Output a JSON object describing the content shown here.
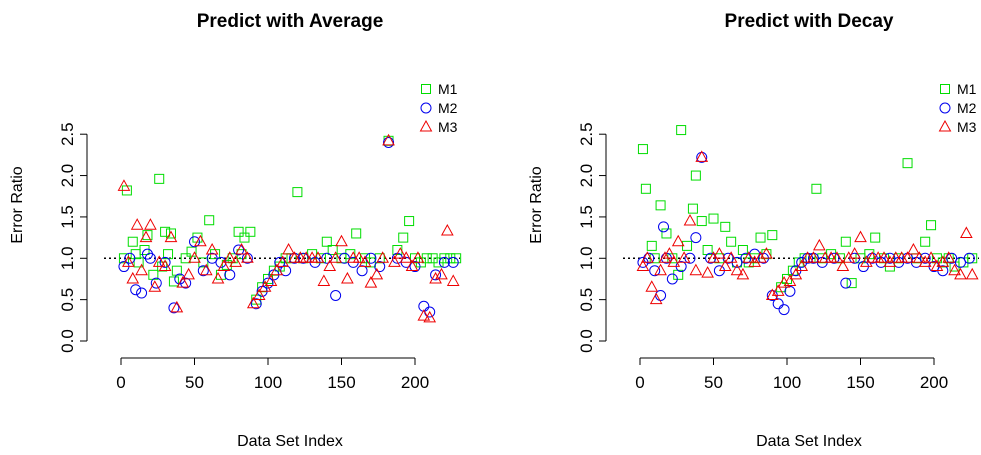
{
  "chart_data": [
    {
      "type": "scatter",
      "title": "Predict with Average",
      "xlabel": "Data Set Index",
      "ylabel": "Error Ratio",
      "xlim": [
        0,
        230
      ],
      "ylim": [
        0,
        2.5
      ],
      "x_ticks": [
        "0",
        "50",
        "100",
        "150",
        "200"
      ],
      "y_ticks": [
        "0.0",
        "0.5",
        "1.0",
        "1.5",
        "2.0",
        "2.5"
      ],
      "legend_position": "top-right",
      "series": [
        {
          "name": "M1",
          "color": "#00dd00",
          "marker": "square",
          "x": [
            2,
            4,
            8,
            10,
            12,
            16,
            18,
            22,
            26,
            28,
            30,
            32,
            34,
            36,
            38,
            44,
            48,
            52,
            56,
            60,
            64,
            68,
            72,
            76,
            80,
            82,
            84,
            88,
            92,
            96,
            100,
            104,
            108,
            112,
            116,
            120,
            124,
            130,
            136,
            140,
            144,
            150,
            156,
            160,
            166,
            170,
            176,
            182,
            188,
            192,
            196,
            200,
            204,
            208,
            212,
            216,
            220,
            224,
            228
          ],
          "y": [
            1.0,
            1.82,
            1.2,
            1.05,
            0.95,
            1.1,
            1.28,
            0.8,
            1.96,
            0.9,
            1.32,
            1.05,
            1.3,
            0.72,
            0.85,
            1.0,
            1.08,
            1.25,
            0.95,
            1.46,
            1.05,
            0.8,
            0.92,
            1.0,
            1.32,
            1.05,
            1.25,
            1.32,
            0.5,
            0.65,
            0.75,
            0.85,
            0.9,
            1.0,
            1.0,
            1.8,
            1.0,
            1.05,
            1.0,
            1.2,
            1.1,
            1.0,
            1.05,
            1.3,
            1.0,
            0.95,
            1.0,
            2.42,
            1.1,
            1.25,
            1.45,
            1.0,
            0.95,
            1.0,
            1.0,
            0.95,
            1.0,
            1.0,
            1.0
          ]
        },
        {
          "name": "M2",
          "color": "#0000ee",
          "marker": "circle",
          "x": [
            2,
            6,
            10,
            14,
            18,
            20,
            24,
            30,
            36,
            40,
            44,
            50,
            56,
            62,
            68,
            74,
            80,
            86,
            92,
            96,
            100,
            104,
            108,
            112,
            118,
            124,
            132,
            140,
            146,
            152,
            158,
            164,
            170,
            176,
            182,
            188,
            194,
            200,
            206,
            210,
            214,
            220,
            226
          ],
          "y": [
            0.9,
            1.0,
            0.62,
            0.58,
            1.05,
            1.0,
            0.7,
            0.95,
            0.4,
            0.75,
            0.7,
            1.2,
            0.85,
            1.0,
            0.95,
            0.8,
            1.1,
            1.0,
            0.45,
            0.6,
            0.7,
            0.8,
            0.95,
            0.85,
            1.0,
            1.0,
            0.95,
            1.0,
            0.55,
            1.0,
            0.95,
            0.85,
            1.0,
            0.9,
            2.4,
            1.0,
            0.95,
            0.9,
            0.42,
            0.35,
            0.8,
            0.95,
            0.95
          ]
        },
        {
          "name": "M3",
          "color": "#ee0000",
          "marker": "triangle",
          "x": [
            2,
            5,
            8,
            11,
            14,
            17,
            20,
            23,
            26,
            30,
            34,
            38,
            42,
            46,
            50,
            54,
            58,
            62,
            66,
            70,
            74,
            78,
            82,
            86,
            90,
            94,
            98,
            102,
            106,
            110,
            114,
            118,
            122,
            126,
            130,
            134,
            138,
            142,
            146,
            150,
            154,
            158,
            162,
            166,
            170,
            174,
            178,
            182,
            186,
            190,
            194,
            198,
            202,
            206,
            210,
            214,
            218,
            222,
            226
          ],
          "y": [
            1.87,
            0.95,
            0.75,
            1.4,
            0.85,
            1.25,
            1.4,
            0.65,
            0.95,
            0.9,
            1.25,
            0.4,
            0.7,
            0.8,
            1.0,
            1.2,
            0.85,
            1.1,
            0.75,
            0.9,
            1.0,
            0.95,
            1.1,
            1.0,
            0.45,
            0.55,
            0.65,
            0.72,
            0.85,
            0.95,
            1.1,
            1.0,
            1.0,
            1.0,
            1.0,
            1.0,
            0.72,
            0.9,
            1.0,
            1.2,
            0.75,
            1.0,
            1.0,
            0.95,
            0.7,
            0.8,
            1.0,
            2.42,
            0.95,
            1.05,
            1.0,
            0.9,
            1.0,
            0.3,
            0.28,
            0.75,
            0.8,
            1.33,
            0.72
          ]
        }
      ]
    },
    {
      "type": "scatter",
      "title": "Predict with Decay",
      "xlabel": "Data Set Index",
      "ylabel": "Error Ratio",
      "xlim": [
        0,
        230
      ],
      "ylim": [
        0,
        2.5
      ],
      "x_ticks": [
        "0",
        "50",
        "100",
        "150",
        "200"
      ],
      "y_ticks": [
        "0.0",
        "0.5",
        "1.0",
        "1.5",
        "2.0",
        "2.5"
      ],
      "legend_position": "top-right",
      "series": [
        {
          "name": "M1",
          "color": "#00dd00",
          "marker": "square",
          "x": [
            2,
            4,
            8,
            10,
            14,
            18,
            22,
            26,
            28,
            32,
            36,
            38,
            42,
            46,
            50,
            54,
            58,
            62,
            66,
            70,
            74,
            78,
            82,
            86,
            90,
            96,
            100,
            104,
            108,
            112,
            116,
            120,
            124,
            130,
            136,
            140,
            144,
            150,
            156,
            160,
            166,
            170,
            176,
            182,
            188,
            194,
            198,
            202,
            206,
            210,
            214,
            220,
            226
          ],
          "y": [
            2.32,
            1.84,
            1.15,
            1.0,
            1.64,
            1.3,
            1.0,
            0.8,
            2.55,
            1.15,
            1.6,
            2.0,
            1.45,
            1.1,
            1.48,
            1.0,
            1.38,
            1.2,
            0.95,
            1.1,
            0.95,
            1.0,
            1.25,
            1.05,
            1.28,
            0.65,
            0.75,
            0.85,
            0.95,
            1.0,
            1.0,
            1.84,
            1.0,
            1.05,
            1.0,
            1.2,
            0.7,
            1.0,
            1.05,
            1.25,
            1.0,
            0.9,
            1.0,
            2.15,
            1.0,
            1.2,
            1.4,
            1.0,
            0.95,
            1.0,
            0.9,
            0.95,
            1.0
          ]
        },
        {
          "name": "M2",
          "color": "#0000ee",
          "marker": "circle",
          "x": [
            2,
            6,
            10,
            14,
            16,
            18,
            22,
            28,
            34,
            38,
            42,
            48,
            54,
            60,
            66,
            72,
            78,
            84,
            90,
            94,
            98,
            102,
            106,
            110,
            114,
            118,
            124,
            132,
            140,
            146,
            152,
            158,
            164,
            170,
            176,
            182,
            188,
            194,
            200,
            206,
            212,
            218,
            224
          ],
          "y": [
            0.95,
            1.0,
            0.85,
            0.55,
            1.38,
            1.0,
            0.75,
            0.9,
            1.0,
            1.25,
            2.22,
            1.0,
            0.85,
            1.0,
            0.95,
            1.0,
            1.05,
            1.0,
            0.55,
            0.45,
            0.38,
            0.6,
            0.85,
            0.95,
            1.0,
            1.0,
            0.95,
            1.0,
            0.7,
            1.0,
            0.9,
            1.0,
            0.95,
            1.0,
            0.95,
            1.0,
            0.95,
            1.0,
            0.9,
            0.85,
            1.0,
            0.95,
            1.0
          ]
        },
        {
          "name": "M3",
          "color": "#ee0000",
          "marker": "triangle",
          "x": [
            2,
            5,
            8,
            11,
            14,
            17,
            20,
            23,
            26,
            30,
            34,
            38,
            42,
            46,
            50,
            54,
            58,
            62,
            66,
            70,
            74,
            78,
            82,
            86,
            90,
            94,
            98,
            102,
            106,
            110,
            114,
            118,
            122,
            126,
            130,
            134,
            138,
            142,
            146,
            150,
            154,
            158,
            162,
            166,
            170,
            174,
            178,
            182,
            186,
            190,
            194,
            198,
            202,
            206,
            210,
            214,
            218,
            222,
            226
          ],
          "y": [
            0.9,
            1.0,
            0.65,
            0.5,
            0.85,
            1.0,
            1.05,
            0.95,
            1.2,
            1.0,
            1.45,
            0.85,
            2.22,
            0.82,
            1.0,
            1.05,
            0.9,
            1.0,
            0.85,
            0.8,
            1.0,
            0.95,
            1.0,
            1.05,
            0.55,
            0.6,
            0.7,
            0.72,
            0.8,
            0.9,
            1.0,
            1.0,
            1.15,
            1.0,
            1.0,
            1.0,
            0.9,
            1.0,
            1.05,
            1.25,
            0.95,
            1.0,
            1.0,
            1.0,
            0.95,
            1.0,
            1.0,
            1.0,
            1.1,
            1.0,
            0.95,
            1.0,
            0.9,
            0.95,
            1.0,
            0.85,
            0.8,
            1.3,
            0.8
          ]
        }
      ]
    }
  ]
}
